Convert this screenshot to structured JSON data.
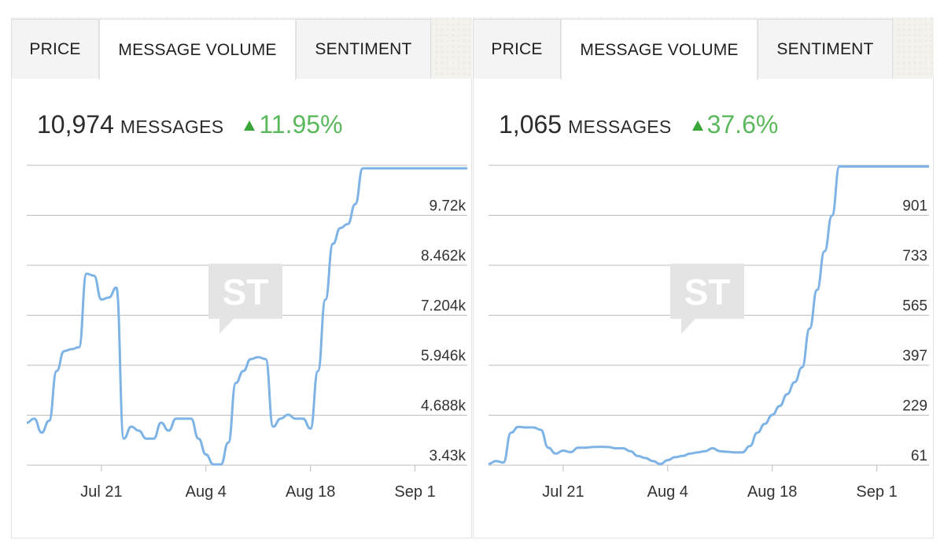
{
  "panels": [
    {
      "tabs": [
        {
          "label": "PRICE",
          "active": false
        },
        {
          "label": "MESSAGE VOLUME",
          "active": true
        },
        {
          "label": "SENTIMENT",
          "active": false
        }
      ],
      "count": "10,974",
      "unit": "MESSAGES",
      "change": "11.95%",
      "change_direction": "up",
      "watermark": "ST"
    },
    {
      "tabs": [
        {
          "label": "PRICE",
          "active": false
        },
        {
          "label": "MESSAGE VOLUME",
          "active": true
        },
        {
          "label": "SENTIMENT",
          "active": false
        }
      ],
      "count": "1,065",
      "unit": "MESSAGES",
      "change": "37.6%",
      "change_direction": "up",
      "watermark": "ST"
    }
  ],
  "colors": {
    "line": "#7eb3e6",
    "up": "#5cb85c",
    "grid": "#bdbdbd",
    "watermark": "#e4e4e4"
  },
  "chart_data": [
    {
      "type": "line",
      "title": "",
      "ylim": [
        3430,
        10978
      ],
      "y_ticks": [
        3430,
        4688,
        5946,
        7204,
        8462,
        9720
      ],
      "y_tick_labels": [
        "3.43k",
        "4.688k",
        "5.946k",
        "7.204k",
        "8.462k",
        "9.72k"
      ],
      "x_tick_labels": [
        "Jul 21",
        "Aug 4",
        "Aug 18",
        "Sep 1"
      ],
      "x_ticks": [
        14,
        28,
        42,
        56
      ],
      "xlim": [
        4,
        63
      ],
      "grid": true,
      "series": [
        {
          "x": [
            4,
            5,
            6,
            7,
            8,
            9,
            10,
            11,
            12,
            13,
            14,
            15,
            16,
            17,
            18,
            19,
            20,
            21,
            22,
            23,
            24,
            25,
            26,
            27,
            28,
            29,
            30,
            31,
            32,
            33,
            34,
            35,
            36,
            37,
            38,
            39,
            40,
            41,
            42,
            43,
            44,
            45,
            46,
            47,
            48,
            49,
            50,
            51,
            52,
            53,
            54,
            55,
            56,
            57,
            58,
            59,
            60,
            61,
            62,
            63
          ],
          "y": [
            4500,
            4600,
            4250,
            4550,
            5800,
            6300,
            6350,
            6400,
            8250,
            8200,
            7600,
            7650,
            7900,
            4100,
            4400,
            4300,
            4100,
            4100,
            4500,
            4300,
            4600,
            4600,
            4600,
            4100,
            3700,
            3450,
            3450,
            4000,
            5500,
            5800,
            6100,
            6150,
            6100,
            4400,
            4600,
            4700,
            4600,
            4600,
            4350,
            5800,
            7600,
            9000,
            9400,
            9500,
            10000,
            10900,
            10900,
            10900,
            10900,
            10900,
            10900,
            10900,
            10900,
            10900,
            10900,
            10900,
            10900,
            10900,
            10900,
            10900
          ]
        }
      ]
    },
    {
      "type": "line",
      "title": "",
      "ylim": [
        61,
        1069
      ],
      "y_ticks": [
        61,
        229,
        397,
        565,
        733,
        901
      ],
      "y_tick_labels": [
        "61",
        "229",
        "397",
        "565",
        "733",
        "901"
      ],
      "x_tick_labels": [
        "Jul 21",
        "Aug 4",
        "Aug 18",
        "Sep 1"
      ],
      "x_ticks": [
        14,
        28,
        42,
        56
      ],
      "xlim": [
        4,
        63
      ],
      "grid": true,
      "series": [
        {
          "x": [
            4,
            5,
            6,
            7,
            8,
            9,
            10,
            11,
            12,
            13,
            14,
            15,
            16,
            17,
            18,
            19,
            20,
            21,
            22,
            23,
            24,
            25,
            26,
            27,
            28,
            29,
            30,
            31,
            32,
            33,
            34,
            35,
            36,
            37,
            38,
            39,
            40,
            41,
            42,
            43,
            44,
            45,
            46,
            47,
            48,
            49,
            50,
            51,
            52,
            53,
            54,
            55,
            56,
            57,
            58,
            59,
            60,
            61,
            62,
            63
          ],
          "y": [
            65,
            75,
            70,
            170,
            190,
            188,
            188,
            180,
            120,
            100,
            110,
            105,
            120,
            120,
            122,
            123,
            122,
            118,
            118,
            108,
            92,
            85,
            75,
            65,
            78,
            88,
            92,
            100,
            104,
            108,
            118,
            108,
            106,
            104,
            104,
            125,
            170,
            200,
            230,
            260,
            300,
            340,
            390,
            520,
            650,
            780,
            900,
            1065,
            1065,
            1065,
            1065,
            1065,
            1065,
            1065,
            1065,
            1065,
            1065,
            1065,
            1065,
            1065
          ]
        }
      ]
    }
  ]
}
